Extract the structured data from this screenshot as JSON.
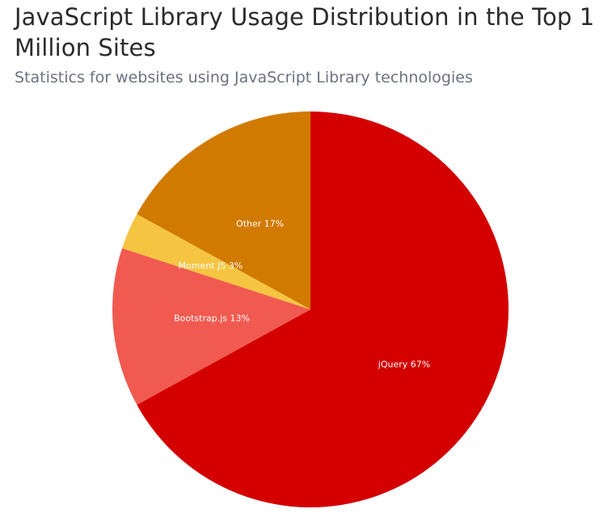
{
  "chart_data": {
    "type": "pie",
    "title": "JavaScript Library Usage Distribution in the Top 1 Million Sites",
    "subtitle": "Statistics for websites using JavaScript Library technologies",
    "categories": [
      "jQuery",
      "Bootstrap.js",
      "Moment JS",
      "Other"
    ],
    "values": [
      67,
      13,
      3,
      17
    ],
    "labels": [
      "jQuery 67%",
      "Bootstrap.js 13%",
      "Moment JS 3%",
      "Other 17%"
    ],
    "colors": [
      "#d40000",
      "#f05a50",
      "#f5c542",
      "#d17a00"
    ],
    "start_angle_deg": 0,
    "direction": "clockwise",
    "legend": "none"
  }
}
